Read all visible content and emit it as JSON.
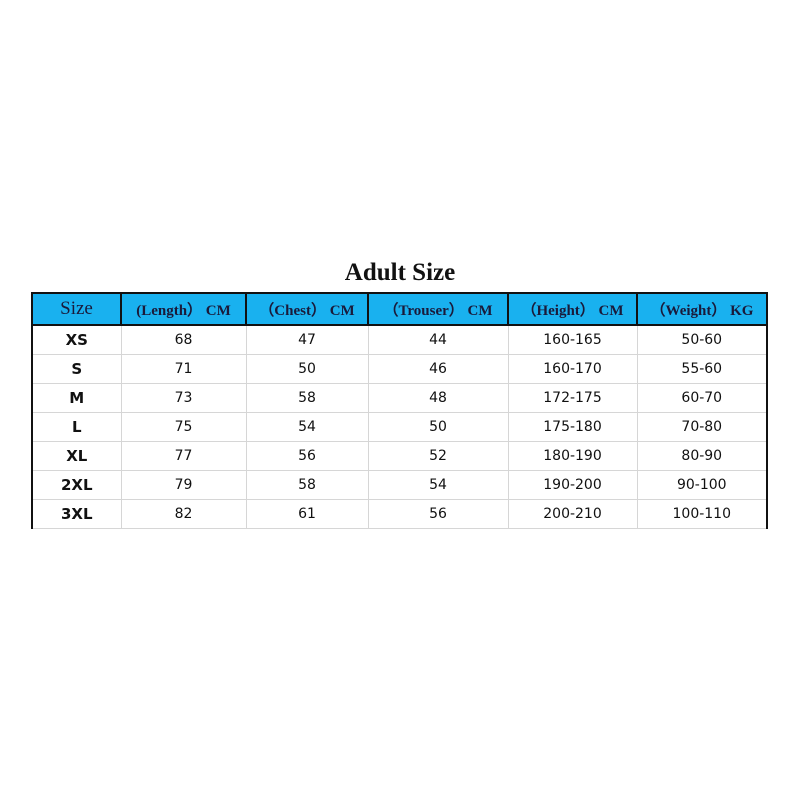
{
  "title": "Adult Size",
  "headers": [
    "Size",
    "(Length） CM",
    "（Chest） CM",
    "（Trouser） CM",
    "（Height） CM",
    "（Weight） KG"
  ],
  "rows": [
    [
      "XS",
      "68",
      "47",
      "44",
      "160-165",
      "50-60"
    ],
    [
      "S",
      "71",
      "50",
      "46",
      "160-170",
      "55-60"
    ],
    [
      "M",
      "73",
      "58",
      "48",
      "172-175",
      "60-70"
    ],
    [
      "L",
      "75",
      "54",
      "50",
      "175-180",
      "70-80"
    ],
    [
      "XL",
      "77",
      "56",
      "52",
      "180-190",
      "80-90"
    ],
    [
      "2XL",
      "79",
      "58",
      "54",
      "190-200",
      "90-100"
    ],
    [
      "3XL",
      "82",
      "61",
      "56",
      "200-210",
      "100-110"
    ]
  ],
  "colors": {
    "header_bg": "#19b1ef"
  }
}
